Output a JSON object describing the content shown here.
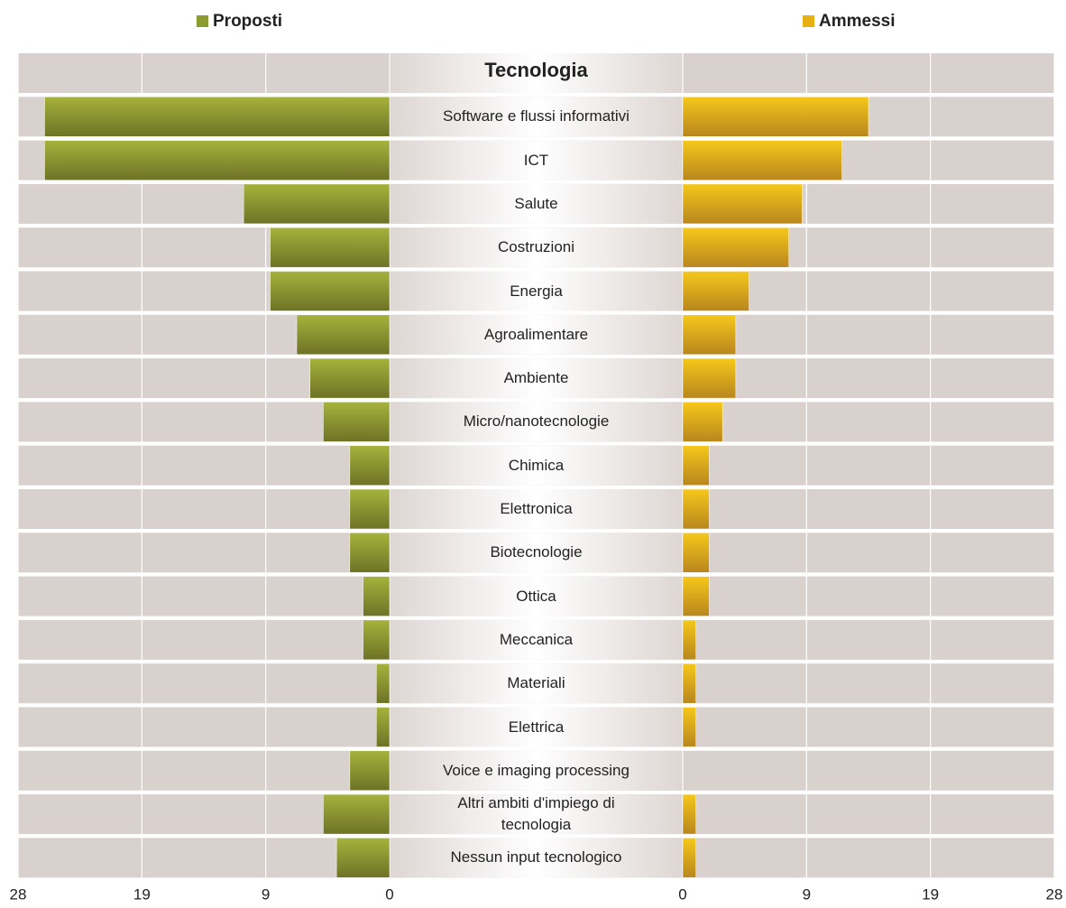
{
  "chart_data": {
    "type": "butterfly-bar",
    "category_label": "Tecnologia",
    "categories": [
      "Software e flussi informativi",
      "ICT",
      "Salute",
      "Costruzioni",
      "Energia",
      "Agroalimentare",
      "Ambiente",
      "Micro/nanotecnologie",
      "Chimica",
      "Elettronica",
      "Biotecnologie",
      "Ottica",
      "Meccanica",
      "Materiali",
      "Elettrica",
      "Voice e imaging processing",
      "Altri ambiti d'impiego di tecnologia",
      "Nessun input tecnologico"
    ],
    "series": [
      {
        "name": "Proposti",
        "color": "#8c9b2f",
        "side": "left",
        "values": [
          26,
          26,
          11,
          9,
          9,
          7,
          6,
          5,
          3,
          3,
          3,
          2,
          2,
          1,
          1,
          3,
          5,
          4
        ]
      },
      {
        "name": "Ammessi",
        "color": "#e8b014",
        "side": "right",
        "values": [
          14,
          12,
          9,
          8,
          5,
          4,
          4,
          3,
          2,
          2,
          2,
          2,
          1,
          1,
          1,
          0,
          1,
          1
        ]
      }
    ],
    "xlim": [
      0,
      28
    ],
    "xticks": [
      0,
      {
        "value": 9.333,
        "label": "9"
      },
      {
        "value": 18.667,
        "label": "19"
      },
      28
    ],
    "grid": true
  }
}
